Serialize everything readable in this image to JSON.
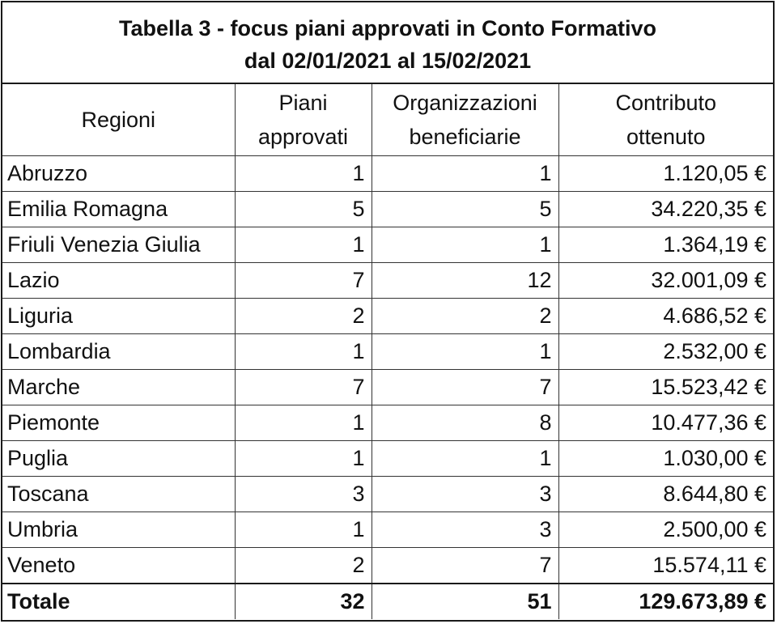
{
  "title": {
    "line1": "Tabella 3 - focus piani approvati in Conto Formativo",
    "line2": "dal 02/01/2021 al 15/02/2021"
  },
  "headers": {
    "regioni": [
      "Regioni"
    ],
    "piani": [
      "Piani",
      "approvati"
    ],
    "organizzazioni": [
      "Organizzazioni",
      "beneficiarie"
    ],
    "contributo": [
      "Contributo",
      "ottenuto"
    ]
  },
  "rows": [
    {
      "regione": "Abruzzo",
      "piani": "1",
      "organizzazioni": "1",
      "contributo": "1.120,05 €"
    },
    {
      "regione": "Emilia Romagna",
      "piani": "5",
      "organizzazioni": "5",
      "contributo": "34.220,35 €"
    },
    {
      "regione": "Friuli Venezia Giulia",
      "piani": "1",
      "organizzazioni": "1",
      "contributo": "1.364,19 €"
    },
    {
      "regione": "Lazio",
      "piani": "7",
      "organizzazioni": "12",
      "contributo": "32.001,09 €"
    },
    {
      "regione": "Liguria",
      "piani": "2",
      "organizzazioni": "2",
      "contributo": "4.686,52 €"
    },
    {
      "regione": "Lombardia",
      "piani": "1",
      "organizzazioni": "1",
      "contributo": "2.532,00 €"
    },
    {
      "regione": "Marche",
      "piani": "7",
      "organizzazioni": "7",
      "contributo": "15.523,42 €"
    },
    {
      "regione": "Piemonte",
      "piani": "1",
      "organizzazioni": "8",
      "contributo": "10.477,36 €"
    },
    {
      "regione": "Puglia",
      "piani": "1",
      "organizzazioni": "1",
      "contributo": "1.030,00 €"
    },
    {
      "regione": "Toscana",
      "piani": "3",
      "organizzazioni": "3",
      "contributo": "8.644,80 €"
    },
    {
      "regione": "Umbria",
      "piani": "1",
      "organizzazioni": "3",
      "contributo": "2.500,00 €"
    },
    {
      "regione": "Veneto",
      "piani": "2",
      "organizzazioni": "7",
      "contributo": "15.574,11 €"
    }
  ],
  "total": {
    "label": "Totale",
    "piani": "32",
    "organizzazioni": "51",
    "contributo": "129.673,89 €"
  }
}
